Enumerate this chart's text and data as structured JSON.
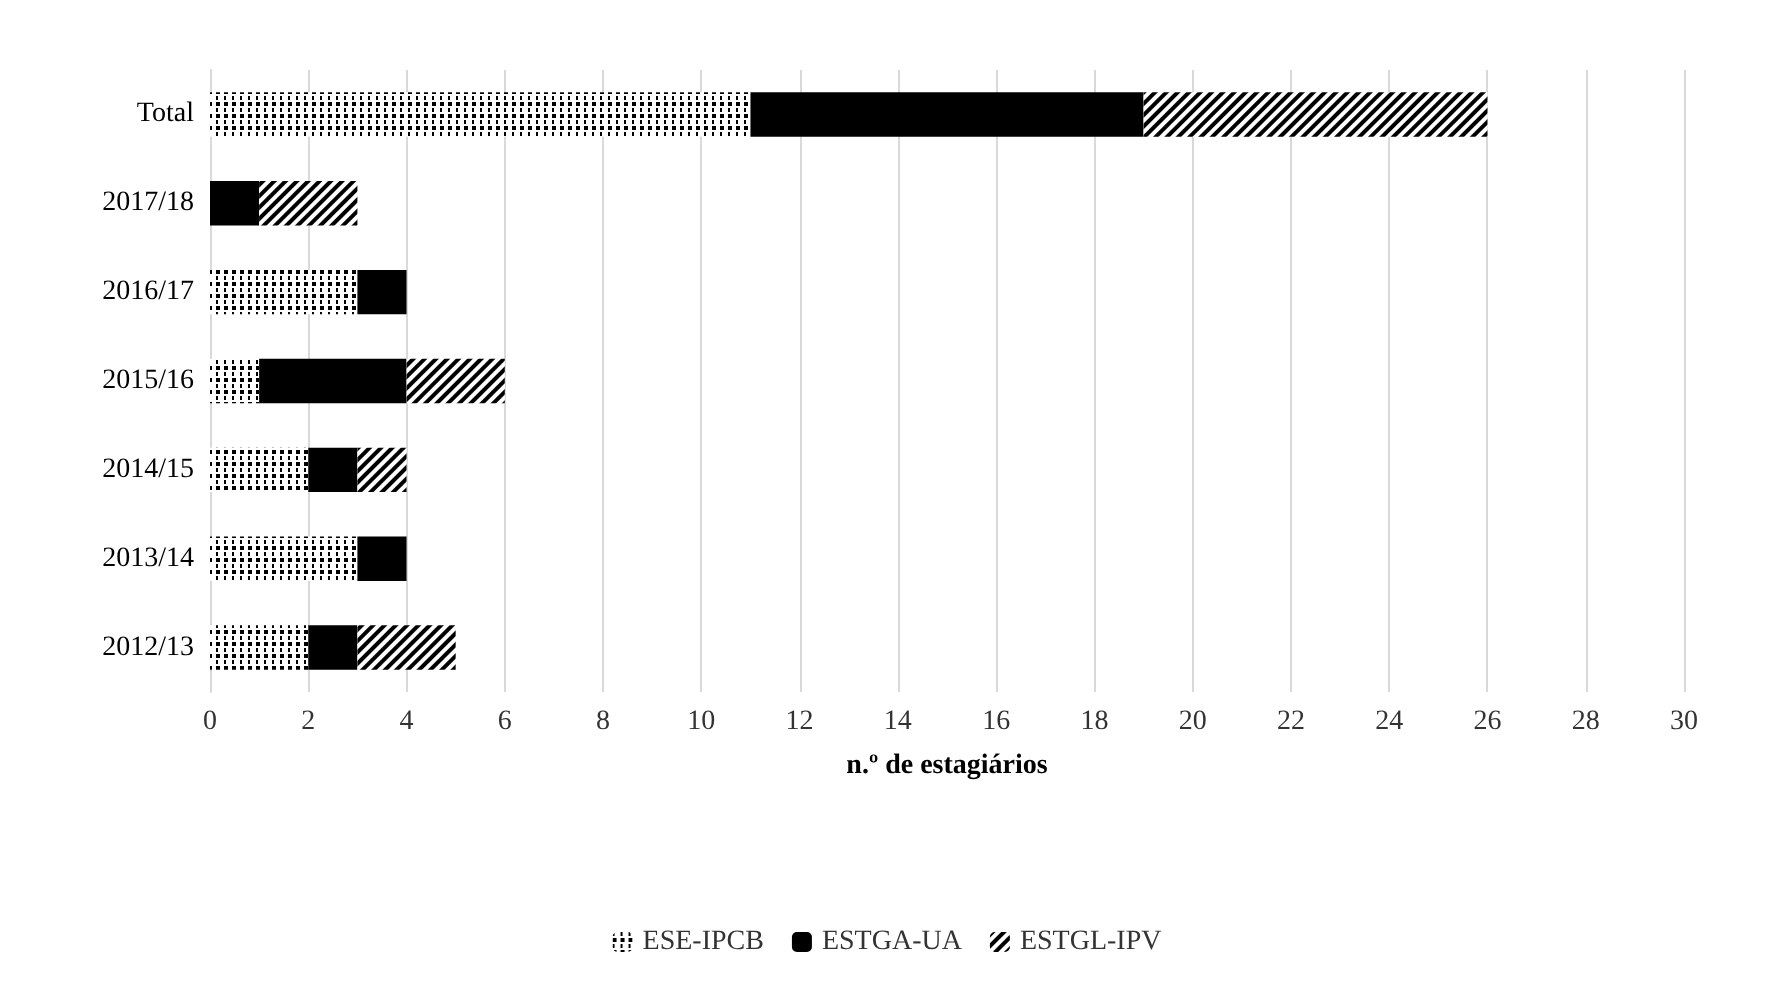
{
  "chart_data": {
    "type": "bar",
    "orientation": "horizontal",
    "stacked": true,
    "xlabel": "n.º de estagiários",
    "categories": [
      "Total",
      "2017/18",
      "2016/17",
      "2015/16",
      "2014/15",
      "2013/14",
      "2012/13"
    ],
    "series": [
      {
        "name": "ESE-IPCB",
        "color": "#000000",
        "values": [
          11,
          0,
          3,
          1,
          2,
          3,
          2
        ]
      },
      {
        "name": "ESTGA-UA",
        "color": "#000000",
        "values": [
          8,
          1,
          1,
          3,
          1,
          1,
          1
        ]
      },
      {
        "name": "ESTGL-IPV",
        "color": "#000000",
        "values": [
          7,
          2,
          0,
          2,
          1,
          0,
          2
        ]
      }
    ],
    "xlim": [
      0,
      30
    ],
    "xticks": [
      0,
      2,
      4,
      6,
      8,
      10,
      12,
      14,
      16,
      18,
      20,
      22,
      24,
      26,
      28,
      30
    ],
    "grid": "x",
    "legend": "bottom"
  }
}
